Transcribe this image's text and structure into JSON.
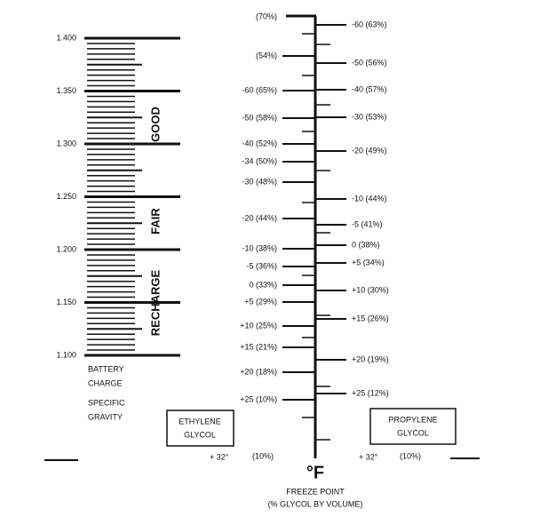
{
  "battery_scale": {
    "ticks": [
      "1.400",
      "1.350",
      "1.300",
      "1.250",
      "1.200",
      "1.150",
      "1.100"
    ],
    "zones": [
      "GOOD",
      "FAIR",
      "RECHARGE"
    ],
    "caption": [
      "BATTERY",
      "CHARGE",
      "SPECIFIC",
      "GRAVITY"
    ]
  },
  "ethylene": {
    "title": [
      "ETHYLENE",
      "GLYCOL"
    ],
    "labels": [
      "(70%)",
      "(54%)",
      "-60 (65%)",
      "-50 (58%)",
      "-40 (52%)",
      "-34 (50%)",
      "-30 (48%)",
      "-20 (44%)",
      "-10 (38%)",
      "-5 (36%)",
      "0 (33%)",
      "+5 (29%)",
      "+10 (25%)",
      "+15 (21%)",
      "+20 (18%)",
      "+25 (10%)"
    ],
    "bottom": {
      "temp": "+ 32°",
      "pct": "(10%)"
    }
  },
  "propylene": {
    "title": [
      "PROPYLENE",
      "GLYCOL"
    ],
    "labels": [
      "-60 (63%)",
      "-50 (56%)",
      "-40 (57%)",
      "-30 (53%)",
      "-20 (49%)",
      "-10 (44%)",
      "-5 (41%)",
      "0 (38%)",
      "+5 (34%)",
      "+10 (30%)",
      "+15 (26%)",
      "+20 (19%)",
      "+25 (12%)"
    ],
    "bottom": {
      "temp": "+ 32°",
      "pct": "(10%)"
    }
  },
  "axis": {
    "unit": "°F",
    "caption": [
      "FREEZE POINT",
      "(% GLYCOL BY VOLUME)"
    ]
  }
}
